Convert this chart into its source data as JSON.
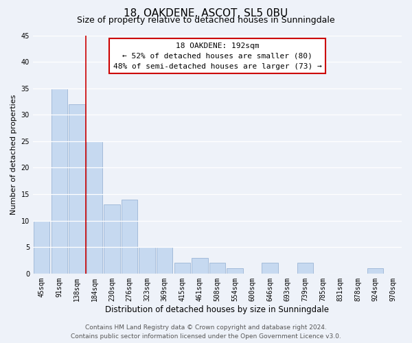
{
  "title": "18, OAKDENE, ASCOT, SL5 0BU",
  "subtitle": "Size of property relative to detached houses in Sunningdale",
  "xlabel": "Distribution of detached houses by size in Sunningdale",
  "ylabel": "Number of detached properties",
  "bin_labels": [
    "45sqm",
    "91sqm",
    "138sqm",
    "184sqm",
    "230sqm",
    "276sqm",
    "323sqm",
    "369sqm",
    "415sqm",
    "461sqm",
    "508sqm",
    "554sqm",
    "600sqm",
    "646sqm",
    "693sqm",
    "739sqm",
    "785sqm",
    "831sqm",
    "878sqm",
    "924sqm",
    "970sqm"
  ],
  "bar_heights": [
    10,
    35,
    32,
    25,
    13,
    14,
    5,
    5,
    2,
    3,
    2,
    1,
    0,
    2,
    0,
    2,
    0,
    0,
    0,
    1,
    0
  ],
  "bar_color": "#c6d9f0",
  "bar_edge_color": "#9ab5d5",
  "vline_x_index": 3,
  "vline_color": "#cc0000",
  "annotation_title": "18 OAKDENE: 192sqm",
  "annotation_line1": "← 52% of detached houses are smaller (80)",
  "annotation_line2": "48% of semi-detached houses are larger (73) →",
  "annotation_box_facecolor": "#ffffff",
  "annotation_box_edgecolor": "#cc0000",
  "ylim": [
    0,
    45
  ],
  "yticks": [
    0,
    5,
    10,
    15,
    20,
    25,
    30,
    35,
    40,
    45
  ],
  "footer_line1": "Contains HM Land Registry data © Crown copyright and database right 2024.",
  "footer_line2": "Contains public sector information licensed under the Open Government Licence v3.0.",
  "bg_color": "#eef2f9",
  "grid_color": "#ffffff",
  "title_fontsize": 11,
  "subtitle_fontsize": 9,
  "xlabel_fontsize": 8.5,
  "ylabel_fontsize": 8,
  "tick_fontsize": 7,
  "annotation_fontsize": 8,
  "footer_fontsize": 6.5
}
